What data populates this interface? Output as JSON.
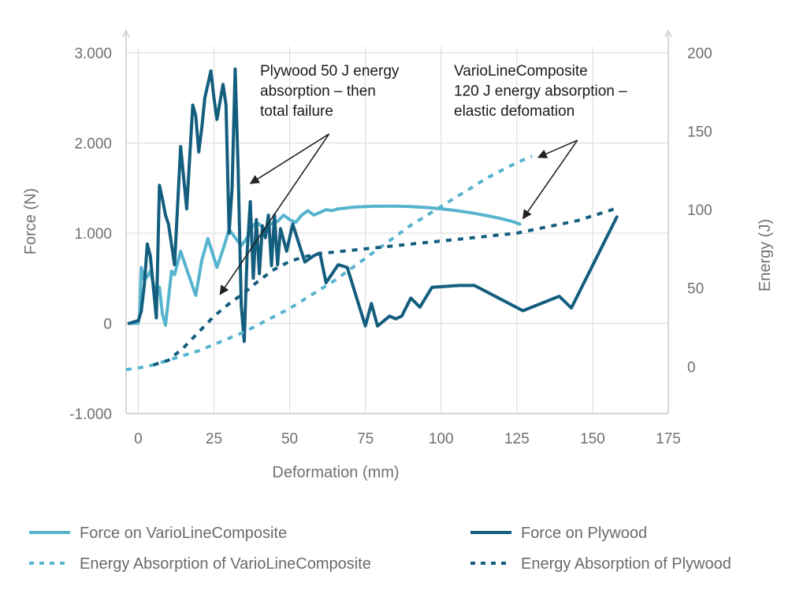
{
  "chart_data": {
    "type": "line",
    "xlabel": "Deformation (mm)",
    "ylabel_left": "Force (N)",
    "ylabel_right": "Energy (J)",
    "x_range": [
      -4,
      175
    ],
    "y_left_range": [
      -1000,
      3000
    ],
    "y_right_range": [
      -30,
      200
    ],
    "x_ticks": [
      0,
      25,
      50,
      75,
      100,
      125,
      150,
      175
    ],
    "x_tick_labels": [
      "0",
      "25",
      "50",
      "75",
      "100",
      "125",
      "150",
      "175"
    ],
    "y_left_ticks": [
      -1000,
      0,
      1000,
      2000,
      3000
    ],
    "y_left_tick_labels": [
      "-1.000",
      "0",
      "1.000",
      "2.000",
      "3.000"
    ],
    "y_right_ticks": [
      0,
      50,
      100,
      150,
      200
    ],
    "y_right_tick_labels": [
      "0",
      "50",
      "100",
      "150",
      "200"
    ],
    "grid": true,
    "colors": {
      "composite": "#57b4cf",
      "plywood": "#135e7e",
      "grid": "#d9d9d9",
      "axis": "#c9c9c9",
      "arrow": "#222222"
    },
    "series": [
      {
        "name": "Force on VarioLineComposite",
        "axis": "left",
        "style": "solid",
        "color": "#57b4cf",
        "x": [
          -3,
          0,
          0.5,
          1,
          2,
          3,
          4,
          6,
          7,
          8,
          9,
          11,
          12,
          14,
          16,
          19,
          21,
          23,
          26,
          28,
          30,
          32,
          34,
          36,
          38,
          39,
          40,
          42,
          44,
          46,
          48,
          50,
          52,
          54,
          56,
          58,
          60,
          62,
          64,
          66,
          68,
          70,
          72,
          75,
          78,
          81,
          85,
          90,
          95,
          100,
          105,
          110,
          115,
          120,
          124,
          126
        ],
        "y": [
          0,
          0,
          100,
          620,
          480,
          520,
          580,
          300,
          400,
          100,
          -20,
          580,
          540,
          800,
          600,
          310,
          700,
          940,
          620,
          820,
          1040,
          950,
          860,
          950,
          1090,
          1110,
          1100,
          1030,
          1110,
          1130,
          1200,
          1150,
          1120,
          1200,
          1250,
          1200,
          1230,
          1260,
          1250,
          1270,
          1275,
          1285,
          1290,
          1295,
          1298,
          1300,
          1300,
          1295,
          1285,
          1270,
          1250,
          1225,
          1195,
          1160,
          1125,
          1100
        ]
      },
      {
        "name": "Force on Plywood",
        "axis": "left",
        "style": "solid",
        "color": "#135e7e",
        "x": [
          -3,
          0,
          0.5,
          1,
          2,
          3,
          4,
          5,
          6,
          7,
          8,
          9,
          10,
          12,
          14,
          16,
          18,
          19,
          20,
          21,
          22,
          24,
          25,
          26,
          28,
          29,
          30,
          31,
          32,
          33,
          34,
          35,
          36,
          37,
          38,
          39,
          40,
          41,
          42,
          43,
          44,
          45,
          46,
          47,
          49,
          51,
          55,
          58,
          60,
          62,
          66,
          69,
          75,
          77,
          79,
          83,
          85,
          87,
          90,
          93,
          97,
          106,
          111,
          127,
          139,
          143,
          158
        ],
        "y": [
          0,
          30,
          80,
          130,
          420,
          880,
          750,
          400,
          60,
          1530,
          1380,
          1200,
          1100,
          650,
          1960,
          1270,
          2420,
          2300,
          1900,
          2170,
          2500,
          2800,
          2500,
          2260,
          2650,
          2420,
          1000,
          1500,
          2820,
          1700,
          200,
          -200,
          800,
          1350,
          500,
          1150,
          550,
          1080,
          950,
          1200,
          640,
          1200,
          650,
          1050,
          800,
          1100,
          680,
          750,
          780,
          450,
          650,
          620,
          -30,
          220,
          -30,
          80,
          50,
          80,
          280,
          180,
          400,
          420,
          420,
          140,
          300,
          170,
          1180
        ]
      },
      {
        "name": "Energy Absorption of VarioLineComposite",
        "axis": "right",
        "style": "dashed",
        "color": "#57b4cf",
        "x": [
          -4,
          0,
          5,
          10,
          15,
          20,
          25,
          30,
          35,
          40,
          45,
          50,
          55,
          60,
          65,
          70,
          75,
          80,
          85,
          90,
          95,
          100,
          105,
          110,
          115,
          120,
          125,
          130
        ],
        "y": [
          -2,
          -1,
          1,
          4,
          7,
          10,
          14,
          18,
          22,
          27,
          32,
          37,
          43,
          49,
          55,
          62,
          69,
          76,
          83,
          90,
          96,
          102,
          108,
          114,
          120,
          125,
          130,
          134
        ]
      },
      {
        "name": "Energy Absorption of Plywood",
        "axis": "right",
        "style": "dashed",
        "color": "#135e7e",
        "x": [
          5,
          10,
          15,
          20,
          25,
          30,
          35,
          40,
          45,
          50,
          55,
          60,
          65,
          70,
          75,
          80,
          85,
          90,
          95,
          100,
          105,
          110,
          115,
          120,
          125,
          130,
          135,
          140,
          145,
          150,
          155,
          158
        ],
        "y": [
          1,
          4,
          12,
          22,
          32,
          40,
          47,
          55,
          62,
          67,
          70,
          72,
          73,
          74,
          75,
          76,
          77,
          78,
          79,
          80,
          81,
          82,
          83,
          84,
          85,
          87,
          89,
          91,
          93,
          96,
          99,
          101
        ]
      }
    ],
    "annotations": [
      {
        "lines": [
          "Plywood 50 J energy",
          "absorption – then",
          "total failure"
        ],
        "anchor_x": 40,
        "anchor_y_left": 2880,
        "arrows": [
          {
            "from": [
              63,
              2100
            ],
            "to": [
              37,
              1550
            ],
            "axis": "left"
          },
          {
            "from": [
              63,
              2100
            ],
            "to": [
              27,
              320
            ],
            "axis": "left"
          }
        ]
      },
      {
        "lines": [
          "VarioLineComposite",
          "120 J energy absorption –",
          "elastic defomation"
        ],
        "anchor_x": 104,
        "anchor_y_left": 2880,
        "arrows": [
          {
            "from": [
              145,
              2030
            ],
            "to": [
              132,
              1840
            ],
            "axis": "left"
          },
          {
            "from": [
              145,
              2030
            ],
            "to": [
              127,
              1160
            ],
            "axis": "left"
          }
        ]
      }
    ],
    "legend": {
      "placement": "bottom",
      "entries": [
        "Force on VarioLineComposite",
        "Force on Plywood",
        "Energy Absorption of VarioLineComposite",
        "Energy Absorption of Plywood"
      ]
    }
  }
}
